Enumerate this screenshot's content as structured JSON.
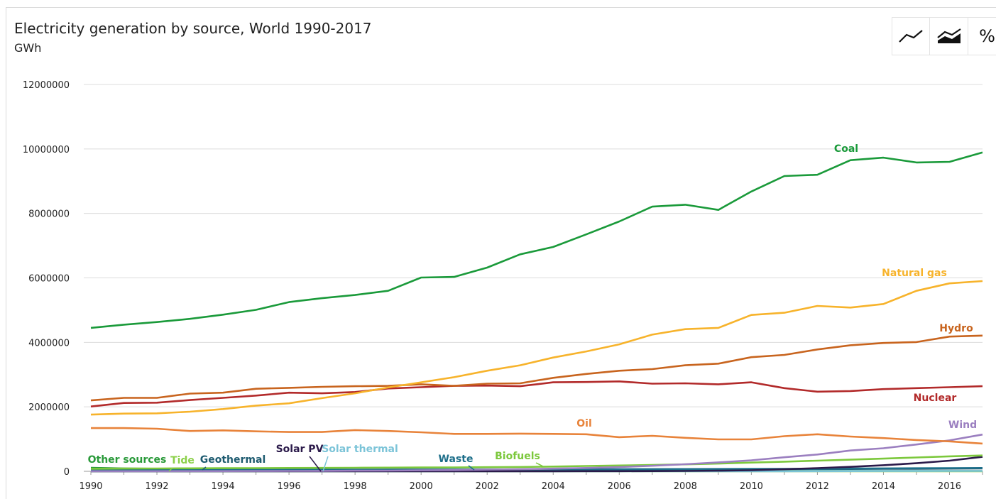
{
  "header": {
    "title": "Electricity generation by source, World 1990-2017",
    "unit": "GWh"
  },
  "toolbar": {
    "line_icon": "line-chart-icon",
    "area_icon": "stacked-area-icon",
    "percent_label": "%"
  },
  "chart_data": {
    "type": "line",
    "title": "Electricity generation by source, World 1990-2017",
    "ylabel": "GWh",
    "xlabel": "",
    "x": [
      1990,
      1991,
      1992,
      1993,
      1994,
      1995,
      1996,
      1997,
      1998,
      1999,
      2000,
      2001,
      2002,
      2003,
      2004,
      2005,
      2006,
      2007,
      2008,
      2009,
      2010,
      2011,
      2012,
      2013,
      2014,
      2015,
      2016,
      2017
    ],
    "xticks": [
      1990,
      1992,
      1994,
      1996,
      1998,
      2000,
      2002,
      2004,
      2006,
      2008,
      2010,
      2012,
      2014,
      2016
    ],
    "ylim": [
      0,
      12000000
    ],
    "yticks": [
      0,
      2000000,
      4000000,
      6000000,
      8000000,
      10000000,
      12000000
    ],
    "ytick_labels": [
      "0",
      "2000000",
      "4000000",
      "6000000",
      "8000000",
      "10000000",
      "12000000"
    ],
    "grid": "horizontal",
    "series": [
      {
        "name": "Coal",
        "color": "#1a9a3a",
        "values": [
          4450000,
          4550000,
          4630000,
          4730000,
          4860000,
          5010000,
          5250000,
          5370000,
          5470000,
          5600000,
          6010000,
          6030000,
          6320000,
          6730000,
          6960000,
          7350000,
          7750000,
          8210000,
          8270000,
          8110000,
          8680000,
          9160000,
          9200000,
          9650000,
          9730000,
          9580000,
          9600000,
          9890000
        ]
      },
      {
        "name": "Natural gas",
        "color": "#f7b32b",
        "values": [
          1760000,
          1790000,
          1800000,
          1850000,
          1930000,
          2040000,
          2110000,
          2270000,
          2420000,
          2600000,
          2760000,
          2920000,
          3120000,
          3290000,
          3530000,
          3720000,
          3940000,
          4240000,
          4410000,
          4450000,
          4850000,
          4920000,
          5130000,
          5080000,
          5190000,
          5600000,
          5830000,
          5900000
        ]
      },
      {
        "name": "Hydro",
        "color": "#c8641e",
        "values": [
          2200000,
          2280000,
          2280000,
          2410000,
          2440000,
          2560000,
          2590000,
          2620000,
          2640000,
          2650000,
          2700000,
          2650000,
          2720000,
          2730000,
          2900000,
          3020000,
          3120000,
          3170000,
          3290000,
          3340000,
          3540000,
          3610000,
          3780000,
          3910000,
          3980000,
          4010000,
          4180000,
          4210000
        ]
      },
      {
        "name": "Nuclear",
        "color": "#b22a2a",
        "values": [
          2010000,
          2120000,
          2130000,
          2210000,
          2280000,
          2350000,
          2440000,
          2420000,
          2460000,
          2570000,
          2610000,
          2650000,
          2660000,
          2640000,
          2760000,
          2770000,
          2790000,
          2720000,
          2730000,
          2700000,
          2760000,
          2580000,
          2470000,
          2490000,
          2550000,
          2580000,
          2610000,
          2640000
        ]
      },
      {
        "name": "Oil",
        "color": "#e8833a",
        "values": [
          1340000,
          1340000,
          1320000,
          1250000,
          1270000,
          1240000,
          1220000,
          1220000,
          1280000,
          1250000,
          1210000,
          1160000,
          1160000,
          1170000,
          1160000,
          1150000,
          1060000,
          1100000,
          1040000,
          990000,
          990000,
          1090000,
          1150000,
          1080000,
          1030000,
          970000,
          930000,
          860000
        ]
      },
      {
        "name": "Wind",
        "color": "#9b7fc0",
        "values": [
          4000,
          4000,
          5000,
          6000,
          7000,
          9000,
          12000,
          14000,
          20000,
          22000,
          31000,
          38000,
          52000,
          63000,
          84000,
          104000,
          133000,
          171000,
          220000,
          277000,
          342000,
          437000,
          521000,
          645000,
          716000,
          833000,
          959000,
          1140000
        ]
      },
      {
        "name": "Biofuels",
        "color": "#7cc83c",
        "values": [
          80000,
          85000,
          88000,
          92000,
          96000,
          100000,
          103000,
          106000,
          110000,
          114000,
          118000,
          122000,
          127000,
          135000,
          148000,
          165000,
          180000,
          195000,
          215000,
          240000,
          270000,
          300000,
          330000,
          360000,
          395000,
          430000,
          465000,
          490000
        ]
      },
      {
        "name": "Solar PV",
        "color": "#2b1a4a",
        "values": [
          100,
          200,
          300,
          400,
          500,
          600,
          700,
          800,
          1000,
          1200,
          1200,
          1500,
          2000,
          2500,
          3000,
          4000,
          5000,
          7000,
          12000,
          20000,
          32000,
          64000,
          100000,
          139000,
          190000,
          250000,
          330000,
          450000
        ]
      },
      {
        "name": "Waste",
        "color": "#1e6f8a",
        "values": [
          45000,
          46000,
          47000,
          48000,
          49000,
          50000,
          51000,
          52000,
          53000,
          54000,
          55000,
          56000,
          58000,
          60000,
          62000,
          64000,
          66000,
          68000,
          70000,
          72000,
          75000,
          78000,
          82000,
          86000,
          90000,
          95000,
          100000,
          104000
        ]
      },
      {
        "name": "Geothermal",
        "color": "#1e5b70",
        "values": [
          36000,
          37000,
          38000,
          39000,
          40000,
          40000,
          42000,
          43000,
          45000,
          50000,
          52000,
          53000,
          54000,
          55000,
          56000,
          58000,
          60000,
          62000,
          64000,
          66000,
          68000,
          69000,
          70000,
          72000,
          76000,
          80000,
          84000,
          88000
        ]
      },
      {
        "name": "Solar thermal",
        "color": "#7cc4d8",
        "values": [
          700,
          800,
          800,
          900,
          900,
          900,
          900,
          900,
          900,
          900,
          500,
          500,
          500,
          600,
          600,
          600,
          600,
          700,
          900,
          1000,
          1700,
          2700,
          4700,
          6700,
          8900,
          9700,
          11000,
          12000
        ]
      },
      {
        "name": "Tide",
        "color": "#8bd04a",
        "values": [
          540,
          540,
          540,
          540,
          540,
          540,
          540,
          540,
          540,
          540,
          540,
          540,
          540,
          540,
          540,
          540,
          540,
          540,
          540,
          540,
          540,
          1000,
          1000,
          1000,
          1000,
          1000,
          1000,
          1000
        ]
      },
      {
        "name": "Other sources",
        "color": "#2a9a3a",
        "values": [
          110000,
          90000,
          80000,
          70000,
          60000,
          50000,
          40000,
          30000,
          25000,
          20000,
          18000,
          16000,
          15000,
          14000,
          13000,
          12000,
          11000,
          11000,
          10000,
          10000,
          10000,
          10000,
          10000,
          10000,
          10000,
          10000,
          10000,
          10000
        ]
      }
    ],
    "annotations": [
      {
        "text": "Coal",
        "series": "Coal"
      },
      {
        "text": "Natural gas",
        "series": "Natural gas"
      },
      {
        "text": "Hydro",
        "series": "Hydro"
      },
      {
        "text": "Nuclear",
        "series": "Nuclear"
      },
      {
        "text": "Oil",
        "series": "Oil"
      },
      {
        "text": "Wind",
        "series": "Wind"
      },
      {
        "text": "Other sources",
        "series": "Other sources"
      },
      {
        "text": "Tide",
        "series": "Tide"
      },
      {
        "text": "Geothermal",
        "series": "Geothermal"
      },
      {
        "text": "Solar PV",
        "series": "Solar PV"
      },
      {
        "text": "Solar thermal",
        "series": "Solar thermal"
      },
      {
        "text": "Waste",
        "series": "Waste"
      },
      {
        "text": "Biofuels",
        "series": "Biofuels"
      }
    ]
  }
}
